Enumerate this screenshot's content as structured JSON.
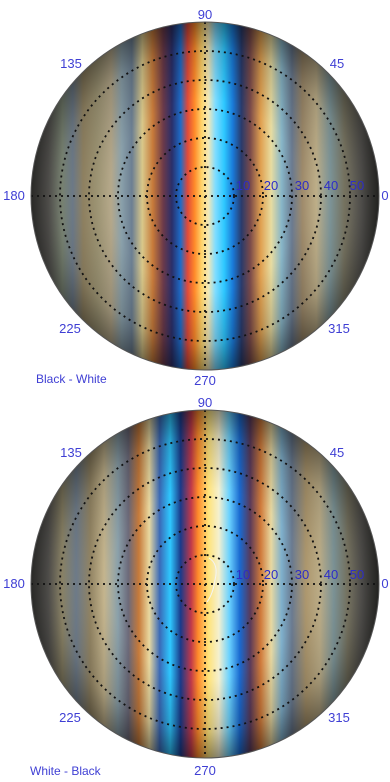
{
  "plots": [
    {
      "caption": "Black - White",
      "angles": [
        "90",
        "45",
        "0",
        "315",
        "270",
        "225",
        "180",
        "135"
      ],
      "radii": [
        "10",
        "20",
        "30",
        "40",
        "50"
      ]
    },
    {
      "caption": "White - Black",
      "angles": [
        "90",
        "45",
        "0",
        "315",
        "270",
        "225",
        "180",
        "135"
      ],
      "radii": [
        "10",
        "20",
        "30",
        "40",
        "50"
      ]
    }
  ],
  "colors": {
    "label": "#3f3fd4",
    "grid": "#111111",
    "band_blue": "#2ec8ff",
    "band_yellow": "#ffe37a",
    "band_orange": "#ff8a2a",
    "band_red": "#c0394a",
    "base_gray": "#8a8a86"
  }
}
